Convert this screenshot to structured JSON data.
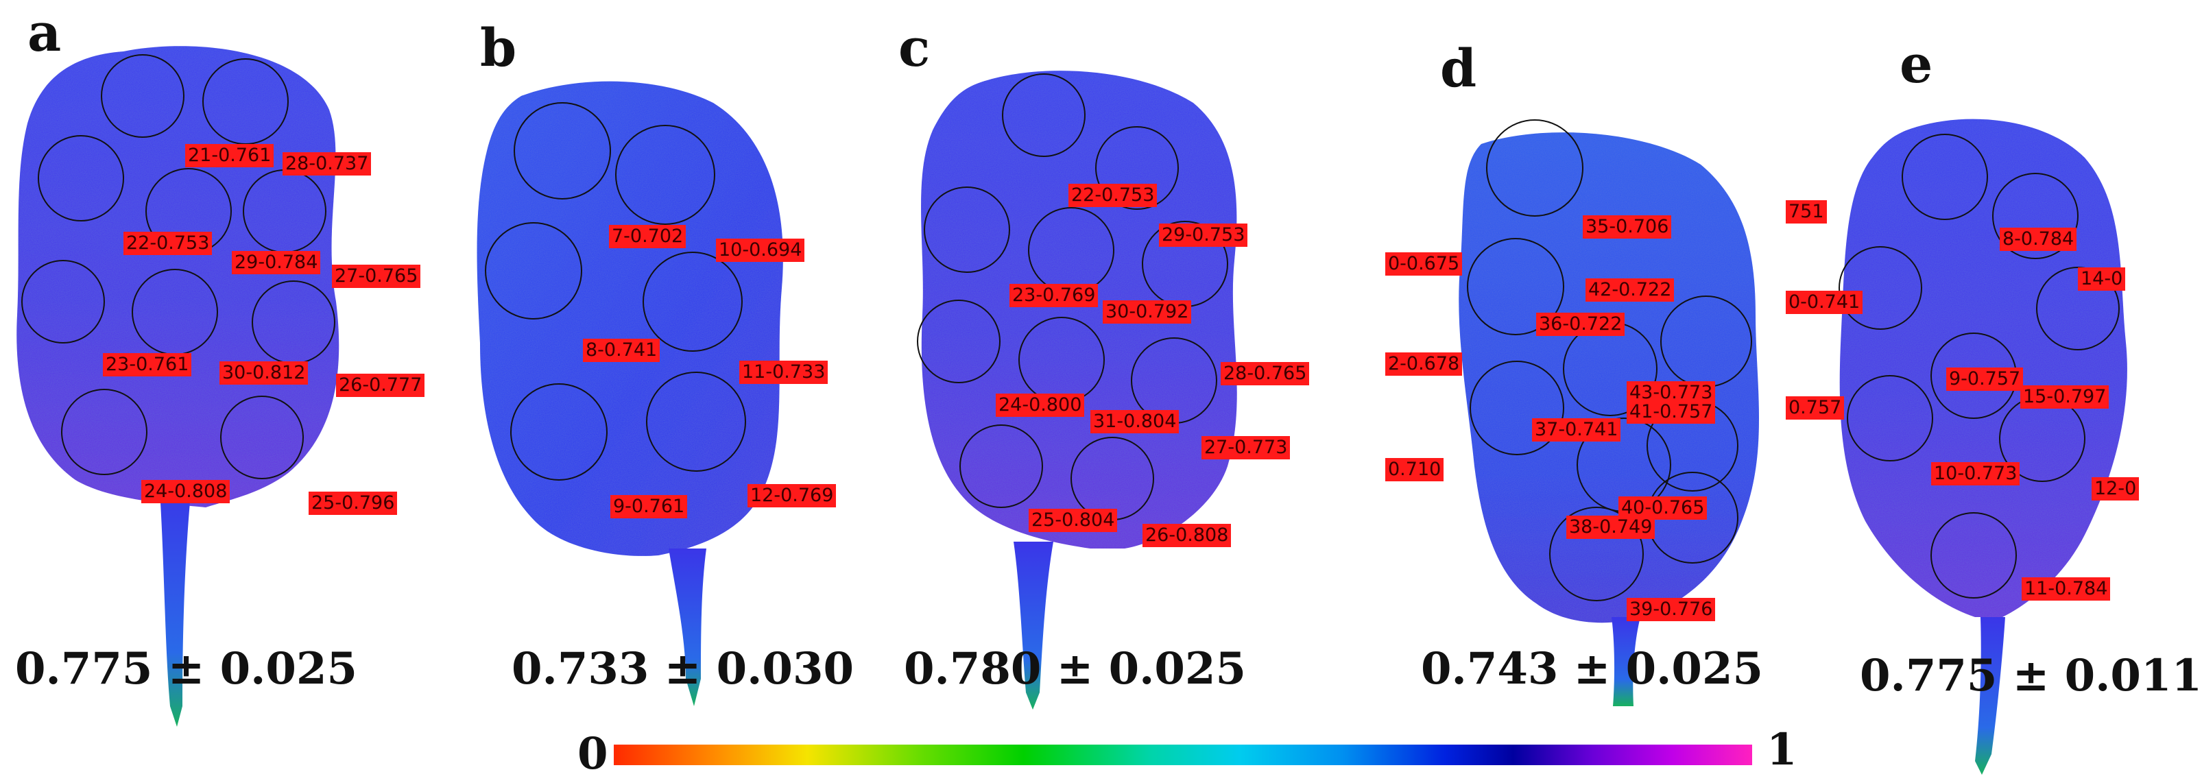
{
  "panels": [
    {
      "letter": "a",
      "value": "0.775 ± 0.025",
      "labels": [
        "21-0.761",
        "28-0.737",
        "22-0.753",
        "29-0.784",
        "27-0.765",
        "23-0.761",
        "30-0.812",
        "26-0.777",
        "24-0.808",
        "25-0.796"
      ]
    },
    {
      "letter": "b",
      "value": "0.733 ± 0.030",
      "labels": [
        "7-0.702",
        "10-0.694",
        "8-0.741",
        "11-0.733",
        "9-0.761",
        "12-0.769"
      ]
    },
    {
      "letter": "c",
      "value": "0.780 ± 0.025",
      "labels": [
        "22-0.753",
        "29-0.753",
        "23-0.769",
        "30-0.792",
        "28-0.765",
        "24-0.800",
        "31-0.804",
        "27-0.773",
        "25-0.804",
        "26-0.808"
      ]
    },
    {
      "letter": "d",
      "value": "0.743 ± 0.025",
      "labels": [
        "35-0.706",
        "0-0.675",
        "42-0.722",
        "36-0.722",
        "2-0.678",
        "43-0.773",
        "41-0.757",
        "37-0.741",
        "0.710",
        "40-0.765",
        "38-0.749",
        "39-0.776"
      ]
    },
    {
      "letter": "e",
      "value": "0.775 ± 0.011",
      "labels": [
        "751",
        "8-0.784",
        "14-0",
        "0-0.741",
        "9-0.757",
        "0.757",
        "15-0.797",
        "10-0.773",
        "12-0",
        "11-0.784"
      ]
    }
  ],
  "colorbar": {
    "min_label": "0",
    "max_label": "1"
  }
}
